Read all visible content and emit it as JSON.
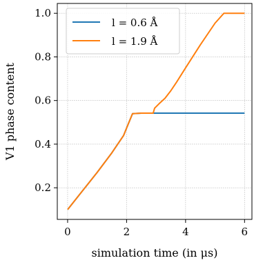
{
  "chart_data": {
    "type": "line",
    "xlabel": "simulation time (in μs)",
    "ylabel": "V1 phase content",
    "xlim": [
      -0.35,
      6.25
    ],
    "ylim": [
      0.055,
      1.045
    ],
    "xticks": [
      0,
      2,
      4,
      6
    ],
    "xtick_labels": [
      "0",
      "2",
      "4",
      "6"
    ],
    "yticks": [
      0.2,
      0.4,
      0.6,
      0.8,
      1.0
    ],
    "ytick_labels": [
      "0.2",
      "0.4",
      "0.6",
      "0.8",
      "1.0"
    ],
    "grid": true,
    "legend_position": "upper-left",
    "series": [
      {
        "name": "l = 0.6 Å",
        "color": "#1f77b4",
        "x": [
          0,
          0.5,
          1.0,
          1.5,
          1.9,
          2.05,
          2.2,
          2.5,
          3.0,
          4.0,
          5.0,
          6.0
        ],
        "y": [
          0.1,
          0.185,
          0.27,
          0.36,
          0.44,
          0.49,
          0.54,
          0.542,
          0.542,
          0.542,
          0.542,
          0.542
        ]
      },
      {
        "name": "l = 1.9 Å",
        "color": "#ff7f0e",
        "x": [
          0,
          0.5,
          1.0,
          1.5,
          1.9,
          2.05,
          2.2,
          2.5,
          2.9,
          2.95,
          3.1,
          3.3,
          3.5,
          3.7,
          4.0,
          4.5,
          5.0,
          5.3,
          5.5,
          6.0
        ],
        "y": [
          0.1,
          0.185,
          0.27,
          0.36,
          0.44,
          0.49,
          0.54,
          0.542,
          0.542,
          0.565,
          0.585,
          0.61,
          0.645,
          0.685,
          0.75,
          0.855,
          0.955,
          1.0,
          1.0,
          1.0
        ]
      }
    ]
  }
}
